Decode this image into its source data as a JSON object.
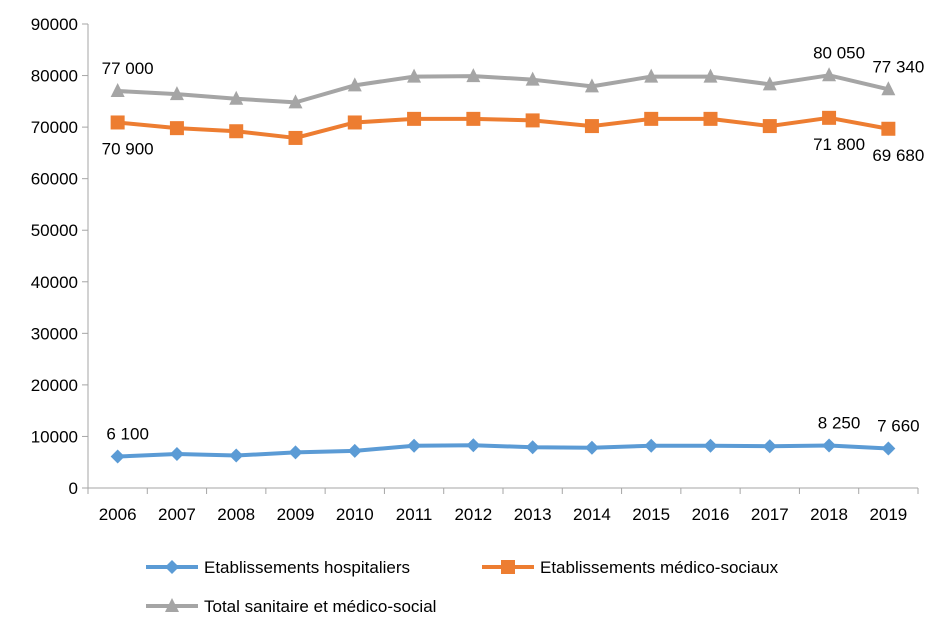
{
  "chart_data": {
    "type": "line",
    "title": "",
    "xlabel": "",
    "ylabel": "",
    "categories": [
      "2006",
      "2007",
      "2008",
      "2009",
      "2010",
      "2011",
      "2012",
      "2013",
      "2014",
      "2015",
      "2016",
      "2017",
      "2018",
      "2019"
    ],
    "ylim": [
      0,
      90000
    ],
    "yticks": [
      "0",
      "10000",
      "20000",
      "30000",
      "40000",
      "50000",
      "60000",
      "70000",
      "80000",
      "90000"
    ],
    "grid": false,
    "legend_position": "bottom",
    "series": [
      {
        "name": "Etablissements hospitaliers",
        "color": "#5B9BD5",
        "marker": "diamond",
        "values": [
          6100,
          6600,
          6300,
          6900,
          7200,
          8200,
          8300,
          7900,
          7800,
          8200,
          8200,
          8100,
          8250,
          7660
        ]
      },
      {
        "name": "Etablissements médico-sociaux",
        "color": "#ED7D31",
        "marker": "square",
        "values": [
          70900,
          69800,
          69200,
          67900,
          70900,
          71600,
          71600,
          71300,
          70200,
          71600,
          71600,
          70200,
          71800,
          69680
        ]
      },
      {
        "name": "Total sanitaire et médico-social",
        "color": "#A5A5A5",
        "marker": "triangle",
        "values": [
          77000,
          76400,
          75500,
          74800,
          78100,
          79800,
          79900,
          79200,
          77900,
          79800,
          79800,
          78300,
          80050,
          77340
        ]
      }
    ],
    "annotations": [
      {
        "series": 0,
        "index": 0,
        "text": "6 100",
        "position": "above"
      },
      {
        "series": 0,
        "index": 12,
        "text": "8 250",
        "position": "above"
      },
      {
        "series": 0,
        "index": 13,
        "text": "7 660",
        "position": "above"
      },
      {
        "series": 1,
        "index": 0,
        "text": "70 900",
        "position": "below"
      },
      {
        "series": 1,
        "index": 12,
        "text": "71 800",
        "position": "below"
      },
      {
        "series": 1,
        "index": 13,
        "text": "69 680",
        "position": "below"
      },
      {
        "series": 2,
        "index": 0,
        "text": "77 000",
        "position": "above"
      },
      {
        "series": 2,
        "index": 12,
        "text": "80 050",
        "position": "above"
      },
      {
        "series": 2,
        "index": 13,
        "text": "77 340",
        "position": "above"
      }
    ]
  }
}
